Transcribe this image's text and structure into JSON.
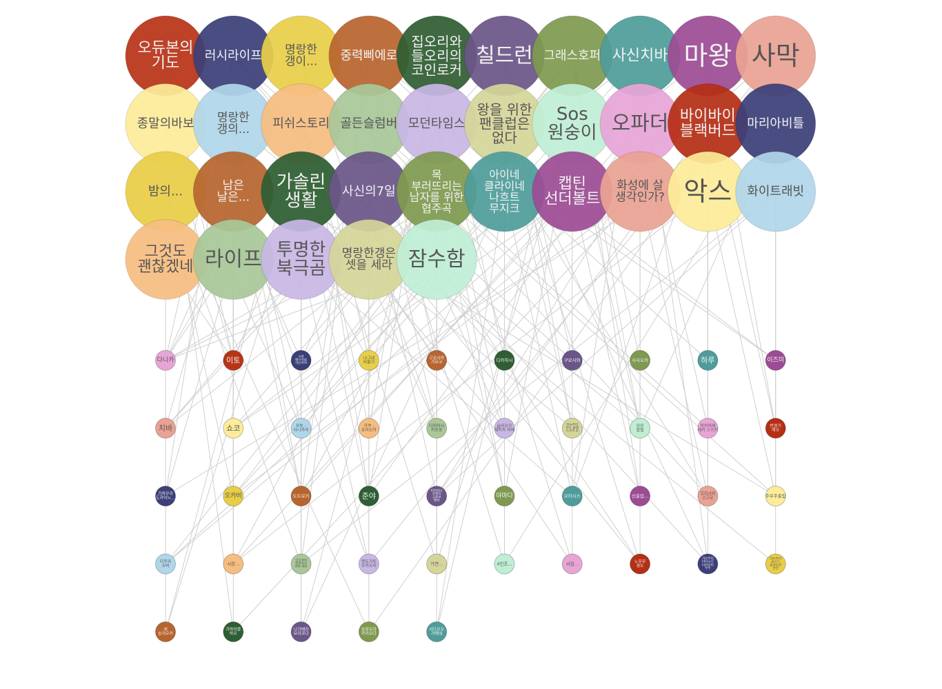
{
  "big_nodes": [
    {
      "id": "b0",
      "lines": [
        "오듀본의",
        "기도"
      ],
      "color": "#b83418"
    },
    {
      "id": "b1",
      "lines": [
        "러시라이프"
      ],
      "color": "#3b3f78"
    },
    {
      "id": "b2",
      "lines": [
        "명랑한",
        "갱이..."
      ],
      "color": "#e8cf4a"
    },
    {
      "id": "b3",
      "lines": [
        "중력삐에로"
      ],
      "color": "#b8652f"
    },
    {
      "id": "b4",
      "lines": [
        "집오리와",
        "들오리의",
        "코인로커"
      ],
      "color": "#2f5e33"
    },
    {
      "id": "b5",
      "lines": [
        "칠드런"
      ],
      "color": "#6a5688"
    },
    {
      "id": "b6",
      "lines": [
        "그래스호퍼"
      ],
      "color": "#7f9a50"
    },
    {
      "id": "b7",
      "lines": [
        "사신치바"
      ],
      "color": "#4f9d9b"
    },
    {
      "id": "b8",
      "lines": [
        "마왕"
      ],
      "color": "#9c4c95"
    },
    {
      "id": "b9",
      "lines": [
        "사막"
      ],
      "color": "#e9a293"
    },
    {
      "id": "b10",
      "lines": [
        "종말의바보"
      ],
      "color": "#fdec99"
    },
    {
      "id": "b11",
      "lines": [
        "명랑한",
        "갱의..."
      ],
      "color": "#b0d6ea"
    },
    {
      "id": "b12",
      "lines": [
        "피쉬스토리"
      ],
      "color": "#f6bd80"
    },
    {
      "id": "b13",
      "lines": [
        "골든슬럼버"
      ],
      "color": "#a9c799"
    },
    {
      "id": "b14",
      "lines": [
        "모던타임스"
      ],
      "color": "#c8b7e4"
    },
    {
      "id": "b15",
      "lines": [
        "왕을 위한",
        "팬클럽은",
        "없다"
      ],
      "color": "#d5d59a"
    },
    {
      "id": "b16",
      "lines": [
        "Sos",
        "원숭이"
      ],
      "color": "#bfeed5"
    },
    {
      "id": "b17",
      "lines": [
        "오파더"
      ],
      "color": "#e7a5d6"
    },
    {
      "id": "b18",
      "lines": [
        "바이바이",
        "블랙버드"
      ],
      "color": "#b52e15"
    },
    {
      "id": "b19",
      "lines": [
        "마리아비틀"
      ],
      "color": "#3c3f79"
    },
    {
      "id": "b20",
      "lines": [
        "밤의..."
      ],
      "color": "#e8cd47"
    },
    {
      "id": "b21",
      "lines": [
        "남은",
        "날은..."
      ],
      "color": "#b7652f"
    },
    {
      "id": "b22",
      "lines": [
        "가솔린",
        "생활"
      ],
      "color": "#2e5e33"
    },
    {
      "id": "b23",
      "lines": [
        "사신의7일"
      ],
      "color": "#6b5689"
    },
    {
      "id": "b24",
      "lines": [
        "목",
        "부러뜨리는",
        "남자를 위한",
        "협주곡"
      ],
      "color": "#7f9a50"
    },
    {
      "id": "b25",
      "lines": [
        "아이네",
        "클라이네",
        "나흐트",
        "무지크"
      ],
      "color": "#4f9d9b"
    },
    {
      "id": "b26",
      "lines": [
        "캡틴",
        "선더볼트"
      ],
      "color": "#9c4c95"
    },
    {
      "id": "b27",
      "lines": [
        "화성에 살",
        "생각인가?"
      ],
      "color": "#e9a293"
    },
    {
      "id": "b28",
      "lines": [
        "악스"
      ],
      "color": "#fdec99"
    },
    {
      "id": "b29",
      "lines": [
        "화이트래빗"
      ],
      "color": "#b0d6ea"
    },
    {
      "id": "b30",
      "lines": [
        "그것도",
        "괜찮겠네"
      ],
      "color": "#f6bd80"
    },
    {
      "id": "b31",
      "lines": [
        "라이프"
      ],
      "color": "#a9c799"
    },
    {
      "id": "b32",
      "lines": [
        "투명한",
        "북극곰"
      ],
      "color": "#c8b7e4"
    },
    {
      "id": "b33",
      "lines": [
        "명랑한갱은",
        "셋을 세라"
      ],
      "color": "#d5d59a"
    },
    {
      "id": "b34",
      "lines": [
        "잠수함"
      ],
      "color": "#bfeed5"
    }
  ],
  "small_nodes": [
    {
      "id": "s0",
      "lines": [
        "다니카"
      ],
      "color": "#e7a5d6"
    },
    {
      "id": "s1",
      "lines": [
        "이토"
      ],
      "color": "#b83418"
    },
    {
      "id": "s2",
      "lines": [
        "시로",
        "메시지로",
        "하는아야"
      ],
      "color": "#3b3f78"
    },
    {
      "id": "s3",
      "lines": [
        "나그네",
        "비둘기"
      ],
      "color": "#e8cf4a"
    },
    {
      "id": "s4",
      "lines": [
        "구로사와",
        "가요코"
      ],
      "color": "#b8652f"
    },
    {
      "id": "s5",
      "lines": [
        "다카하시"
      ],
      "color": "#2f5e33"
    },
    {
      "id": "s6",
      "lines": [
        "구로사와"
      ],
      "color": "#6a5688"
    },
    {
      "id": "s7",
      "lines": [
        "사사오카"
      ],
      "color": "#7f9a50"
    },
    {
      "id": "s8",
      "lines": [
        "하루"
      ],
      "color": "#4f9d9b"
    },
    {
      "id": "s9",
      "lines": [
        "이즈미"
      ],
      "color": "#9c4c95"
    },
    {
      "id": "s10",
      "lines": [
        "치바"
      ],
      "color": "#e9a293"
    },
    {
      "id": "s11",
      "lines": [
        "쇼코"
      ],
      "color": "#fdec99"
    },
    {
      "id": "s12",
      "lines": [
        "부토 -",
        "다나카의"
      ],
      "color": "#b0d6ea"
    },
    {
      "id": "s13",
      "lines": [
        "가쿠 -",
        "호리오카"
      ],
      "color": "#f6bd80"
    },
    {
      "id": "s14",
      "lines": [
        "다지마시",
        "키조로"
      ],
      "color": "#a9c799"
    },
    {
      "id": "s15",
      "lines": [
        "슬리오오",
        "세키카 마에"
      ],
      "color": "#c8b7e4"
    },
    {
      "id": "s16",
      "lines": [
        "이누카이",
        "반도 슬레",
        "스즈끼 쥰"
      ],
      "color": "#d5d59a"
    },
    {
      "id": "s17",
      "lines": [
        "모모",
        "말벌"
      ],
      "color": "#bfeed5"
    },
    {
      "id": "s18",
      "lines": [
        "미카미레",
        "세키 스즈키"
      ],
      "color": "#e7a5d6"
    },
    {
      "id": "s19",
      "lines": [
        "반경기",
        "레오"
      ],
      "color": "#b52e15"
    },
    {
      "id": "s20",
      "lines": [
        "가와무라",
        "도카이노..."
      ],
      "color": "#3c3f79"
    },
    {
      "id": "s21",
      "lines": [
        "오카비"
      ],
      "color": "#e8cd47"
    },
    {
      "id": "s22",
      "lines": [
        "도도로키"
      ],
      "color": "#b7652f"
    },
    {
      "id": "s23",
      "lines": [
        "준야"
      ],
      "color": "#2e5e33"
    },
    {
      "id": "s24",
      "lines": [
        "미즈타니",
        "호열리",
        "고로쿠",
        "벤자"
      ],
      "color": "#6b5689"
    },
    {
      "id": "s25",
      "lines": [
        "아마다"
      ],
      "color": "#7f9a50"
    },
    {
      "id": "s26",
      "lines": [
        "오아시스"
      ],
      "color": "#4f9d9b"
    },
    {
      "id": "s27",
      "lines": [
        "신출입..."
      ],
      "color": "#9c4c95"
    },
    {
      "id": "s28",
      "lines": [
        "후지사와",
        "긴고로"
      ],
      "color": "#e9a293"
    },
    {
      "id": "s29",
      "lines": [
        "주우주출입"
      ],
      "color": "#fdec99"
    },
    {
      "id": "s30",
      "lines": [
        "다무라",
        "소비"
      ],
      "color": "#b0d6ea"
    },
    {
      "id": "s31",
      "lines": [
        "시장..."
      ],
      "color": "#f6bd80"
    },
    {
      "id": "s32",
      "lines": [
        "오오하야",
        "엔포자보",
        "하마 마찬"
      ],
      "color": "#a9c799"
    },
    {
      "id": "s33",
      "lines": [
        "엔도가또",
        "오카오리"
      ],
      "color": "#c8b7e4"
    },
    {
      "id": "s34",
      "lines": [
        "가면..."
      ],
      "color": "#d5d59a"
    },
    {
      "id": "s35",
      "lines": [
        "4인조..."
      ],
      "color": "#bfeed5"
    },
    {
      "id": "s36",
      "lines": [
        "서점..."
      ],
      "color": "#e7a5d6"
    },
    {
      "id": "s37",
      "lines": [
        "노부부",
        "경도"
      ],
      "color": "#b52e15"
    },
    {
      "id": "s38",
      "lines": [
        "가오부리",
        "다다시오",
        "다카부미",
        "부부"
      ],
      "color": "#3c3f79"
    },
    {
      "id": "s39",
      "lines": [
        "이누카이",
        "준오스",
        "준자오루",
        "반단"
      ],
      "color": "#e8cd47"
    },
    {
      "id": "s40",
      "lines": [
        "세",
        "호리오카"
      ],
      "color": "#b7652f"
    },
    {
      "id": "s41",
      "lines": [
        "가와이블",
        "하오"
      ],
      "color": "#2e5e33"
    },
    {
      "id": "s42",
      "lines": [
        "나가베라",
        "요리코다"
      ],
      "color": "#6b5689"
    },
    {
      "id": "s43",
      "lines": [
        "호랑모라",
        "카이오다"
      ],
      "color": "#7f9a50"
    },
    {
      "id": "s44",
      "lines": [
        "사다보오",
        "가에데"
      ],
      "color": "#4f9d9b"
    }
  ],
  "edges": [
    [
      "b0",
      "s1"
    ],
    [
      "b0",
      "s2"
    ],
    [
      "b0",
      "s20"
    ],
    [
      "b0",
      "s40"
    ],
    [
      "b0",
      "s0"
    ],
    [
      "b1",
      "s0"
    ],
    [
      "b1",
      "s6"
    ],
    [
      "b1",
      "s5"
    ],
    [
      "b1",
      "s4"
    ],
    [
      "b1",
      "s20"
    ],
    [
      "b1",
      "s37"
    ],
    [
      "b2",
      "s3"
    ],
    [
      "b2",
      "s23"
    ],
    [
      "b2",
      "s22"
    ],
    [
      "b2",
      "s0"
    ],
    [
      "b2",
      "s14"
    ],
    [
      "b2",
      "s42"
    ],
    [
      "b3",
      "s4"
    ],
    [
      "b3",
      "s9"
    ],
    [
      "b3",
      "s8"
    ],
    [
      "b3",
      "s32"
    ],
    [
      "b3",
      "s0"
    ],
    [
      "b3",
      "s22"
    ],
    [
      "b4",
      "s5"
    ],
    [
      "b4",
      "s23"
    ],
    [
      "b4",
      "s2"
    ],
    [
      "b4",
      "s13"
    ],
    [
      "b4",
      "s28"
    ],
    [
      "b5",
      "s6"
    ],
    [
      "b5",
      "s16"
    ],
    [
      "b5",
      "s35"
    ],
    [
      "b5",
      "s31"
    ],
    [
      "b5",
      "s10"
    ],
    [
      "b6",
      "s7"
    ],
    [
      "b6",
      "s17"
    ],
    [
      "b6",
      "s27"
    ],
    [
      "b6",
      "s21"
    ],
    [
      "b6",
      "s30"
    ],
    [
      "b6",
      "s44"
    ],
    [
      "b7",
      "s10"
    ],
    [
      "b7",
      "s38"
    ],
    [
      "b7",
      "s26"
    ],
    [
      "b7",
      "s3"
    ],
    [
      "b8",
      "s8"
    ],
    [
      "b8",
      "s24"
    ],
    [
      "b8",
      "s11"
    ],
    [
      "b8",
      "s19"
    ],
    [
      "b9",
      "s11"
    ],
    [
      "b9",
      "s33"
    ],
    [
      "b9",
      "s30"
    ],
    [
      "b9",
      "s43"
    ],
    [
      "b10",
      "s0"
    ],
    [
      "b10",
      "s12"
    ],
    [
      "b10",
      "s29"
    ],
    [
      "b10",
      "s1"
    ],
    [
      "b10",
      "s41"
    ],
    [
      "b11",
      "s12"
    ],
    [
      "b11",
      "s21"
    ],
    [
      "b11",
      "s22"
    ],
    [
      "b11",
      "s3"
    ],
    [
      "b11",
      "s39"
    ],
    [
      "b12",
      "s13"
    ],
    [
      "b12",
      "s14"
    ],
    [
      "b12",
      "s34"
    ],
    [
      "b12",
      "s0"
    ],
    [
      "b12",
      "s40"
    ],
    [
      "b13",
      "s14"
    ],
    [
      "b13",
      "s15"
    ],
    [
      "b13",
      "s35"
    ],
    [
      "b13",
      "s28"
    ],
    [
      "b13",
      "s18"
    ],
    [
      "b14",
      "s15"
    ],
    [
      "b14",
      "s25"
    ],
    [
      "b14",
      "s36"
    ],
    [
      "b14",
      "s42"
    ],
    [
      "b14",
      "s9"
    ],
    [
      "b15",
      "s16"
    ],
    [
      "b15",
      "s35"
    ],
    [
      "b15",
      "s37"
    ],
    [
      "b15",
      "s22"
    ],
    [
      "b15",
      "s38"
    ],
    [
      "b16",
      "s17"
    ],
    [
      "b16",
      "s25"
    ],
    [
      "b16",
      "s34"
    ],
    [
      "b16",
      "s0"
    ],
    [
      "b16",
      "s21"
    ],
    [
      "b17",
      "s18"
    ],
    [
      "b17",
      "s27"
    ],
    [
      "b17",
      "s23"
    ],
    [
      "b17",
      "s31"
    ],
    [
      "b18",
      "s19"
    ],
    [
      "b18",
      "s28"
    ],
    [
      "b18",
      "s26"
    ],
    [
      "b18",
      "s24"
    ],
    [
      "b19",
      "s20"
    ],
    [
      "b19",
      "s29"
    ],
    [
      "b19",
      "s35"
    ],
    [
      "b19",
      "s17"
    ],
    [
      "b20",
      "s0"
    ],
    [
      "b20",
      "s21"
    ],
    [
      "b20",
      "s30"
    ],
    [
      "b20",
      "s43"
    ],
    [
      "b20",
      "s32"
    ],
    [
      "b21",
      "s22"
    ],
    [
      "b21",
      "s31"
    ],
    [
      "b21",
      "s10"
    ],
    [
      "b21",
      "s33"
    ],
    [
      "b22",
      "s23"
    ],
    [
      "b22",
      "s32"
    ],
    [
      "b22",
      "s15"
    ],
    [
      "b22",
      "s40"
    ],
    [
      "b22",
      "s1"
    ],
    [
      "b23",
      "s24"
    ],
    [
      "b23",
      "s33"
    ],
    [
      "b23",
      "s38"
    ],
    [
      "b23",
      "s10"
    ],
    [
      "b23",
      "s13"
    ],
    [
      "b24",
      "s25"
    ],
    [
      "b24",
      "s34"
    ],
    [
      "b24",
      "s2"
    ],
    [
      "b24",
      "s29"
    ],
    [
      "b24",
      "s11"
    ],
    [
      "b25",
      "s26"
    ],
    [
      "b25",
      "s35"
    ],
    [
      "b25",
      "s12"
    ],
    [
      "b25",
      "s44"
    ],
    [
      "b25",
      "s42"
    ],
    [
      "b26",
      "s27"
    ],
    [
      "b26",
      "s36"
    ],
    [
      "b26",
      "s22"
    ],
    [
      "b26",
      "s30"
    ],
    [
      "b27",
      "s28"
    ],
    [
      "b27",
      "s37"
    ],
    [
      "b27",
      "s21"
    ],
    [
      "b27",
      "s41"
    ],
    [
      "b28",
      "s29"
    ],
    [
      "b28",
      "s38"
    ],
    [
      "b28",
      "s8"
    ],
    [
      "b28",
      "s18"
    ],
    [
      "b28",
      "s31"
    ],
    [
      "b29",
      "s9"
    ],
    [
      "b29",
      "s39"
    ],
    [
      "b29",
      "s19"
    ],
    [
      "b29",
      "s32"
    ],
    [
      "b29",
      "s24"
    ],
    [
      "b30",
      "s40"
    ],
    [
      "b30",
      "s10"
    ],
    [
      "b30",
      "s0"
    ],
    [
      "b30",
      "s1"
    ],
    [
      "b31",
      "s41"
    ],
    [
      "b31",
      "s11"
    ],
    [
      "b31",
      "s31"
    ],
    [
      "b31",
      "s1"
    ],
    [
      "b31",
      "s20"
    ],
    [
      "b32",
      "s42"
    ],
    [
      "b32",
      "s2"
    ],
    [
      "b32",
      "s12"
    ],
    [
      "b32",
      "s33"
    ],
    [
      "b32",
      "s26"
    ],
    [
      "b33",
      "s43"
    ],
    [
      "b33",
      "s3"
    ],
    [
      "b33",
      "s16"
    ],
    [
      "b33",
      "s36"
    ],
    [
      "b33",
      "s0"
    ],
    [
      "b34",
      "s44"
    ],
    [
      "b34",
      "s4"
    ],
    [
      "b34",
      "s17"
    ],
    [
      "b34",
      "s37"
    ],
    [
      "b34",
      "s0"
    ]
  ]
}
